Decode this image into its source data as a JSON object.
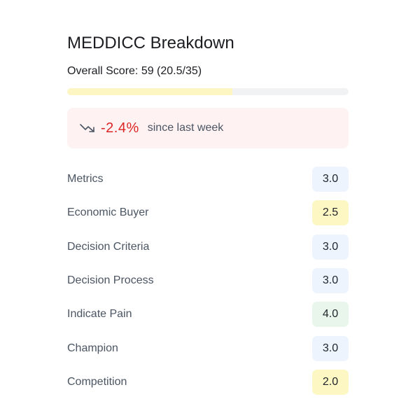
{
  "card": {
    "title": "MEDDICC Breakdown",
    "overall_label": "Overall Score: 59 (20.5/35)",
    "overall_fraction": 0.586
  },
  "trend": {
    "icon": "trending-down-icon",
    "value": "-2.4%",
    "label": "since last week",
    "color": "#dc2626",
    "background": "#fef2f2"
  },
  "criteria": [
    {
      "label": "Metrics",
      "score": "3.0",
      "color": "#eef4fe"
    },
    {
      "label": "Economic Buyer",
      "score": "2.5",
      "color": "#fdf7c4"
    },
    {
      "label": "Decision Criteria",
      "score": "3.0",
      "color": "#eef4fe"
    },
    {
      "label": "Decision Process",
      "score": "3.0",
      "color": "#eef4fe"
    },
    {
      "label": "Indicate Pain",
      "score": "4.0",
      "color": "#e9f6ec"
    },
    {
      "label": "Champion",
      "score": "3.0",
      "color": "#eef4fe"
    },
    {
      "label": "Competition",
      "score": "2.0",
      "color": "#fdf7c4"
    }
  ]
}
